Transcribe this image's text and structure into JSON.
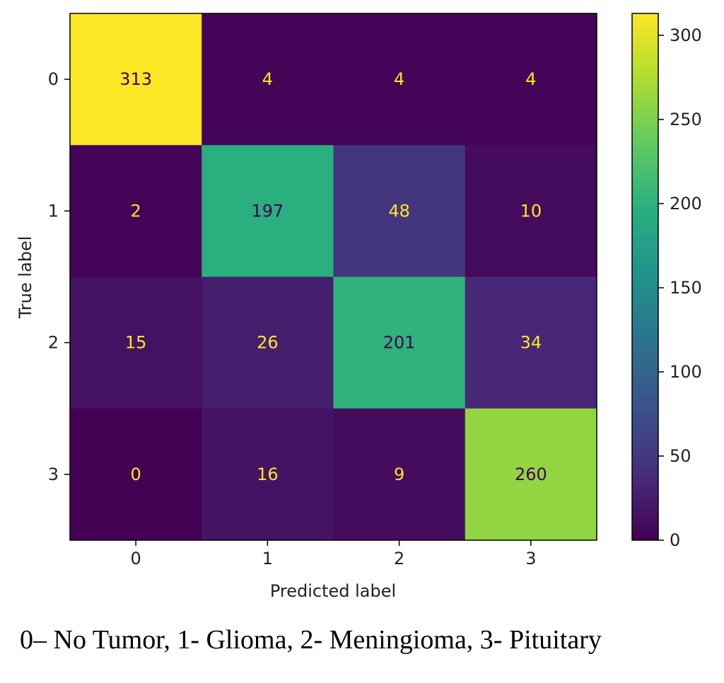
{
  "chart_data": {
    "type": "heatmap",
    "x_categories": [
      "0",
      "1",
      "2",
      "3"
    ],
    "y_categories": [
      "0",
      "1",
      "2",
      "3"
    ],
    "values": [
      [
        313,
        4,
        4,
        4
      ],
      [
        2,
        197,
        48,
        10
      ],
      [
        15,
        26,
        201,
        34
      ],
      [
        0,
        16,
        9,
        260
      ]
    ],
    "xlabel": "Predicted label",
    "ylabel": "True label",
    "colormap": "viridis",
    "colorbar": {
      "range": [
        0,
        313
      ],
      "ticks": [
        0,
        50,
        100,
        150,
        200,
        250,
        300
      ]
    },
    "text_colors": {
      "light": "#fde725",
      "dark": "#440154"
    }
  },
  "caption": "0– No Tumor, 1- Glioma, 2- Meningioma, 3- Pituitary"
}
